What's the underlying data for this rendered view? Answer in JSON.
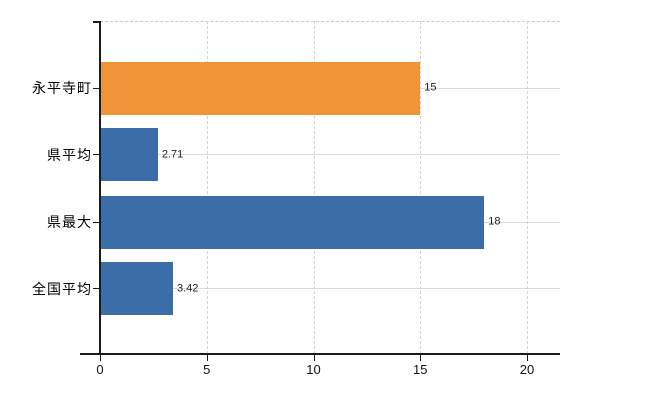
{
  "chart_data": {
    "type": "bar",
    "orientation": "horizontal",
    "title": "",
    "xlabel": "",
    "ylabel": "",
    "categories": [
      "永平寺町",
      "県平均",
      "県最大",
      "全国平均"
    ],
    "values": [
      15,
      2.71,
      18,
      3.42
    ],
    "value_labels": [
      "15",
      "2.71",
      "18",
      "3.42"
    ],
    "bar_colors": [
      "#ee9637",
      "#3b6da9",
      "#3b6da9",
      "#3b6da9"
    ],
    "x_ticks": [
      0,
      5,
      10,
      15,
      20
    ],
    "x_tick_labels": [
      "0",
      "5",
      "10",
      "15",
      "20"
    ],
    "xlim": [
      0,
      21.5
    ],
    "grid": {
      "horizontal": "solid, at each category center",
      "vertical": "dashed, at each x tick",
      "top_border": "dashed"
    },
    "legend": "none"
  },
  "colors": {
    "highlight_bar": "#ee9637",
    "base_bar": "#3b6da9",
    "axis": "#1a1a1a",
    "grid_solid": "#d9d9d9",
    "grid_dashed": "#d4d4d4",
    "top_border": "#c9c9c9",
    "category_text": "#000000",
    "value_text": "#1f1f1f",
    "tick_text": "#111111",
    "background": "#ffffff"
  }
}
